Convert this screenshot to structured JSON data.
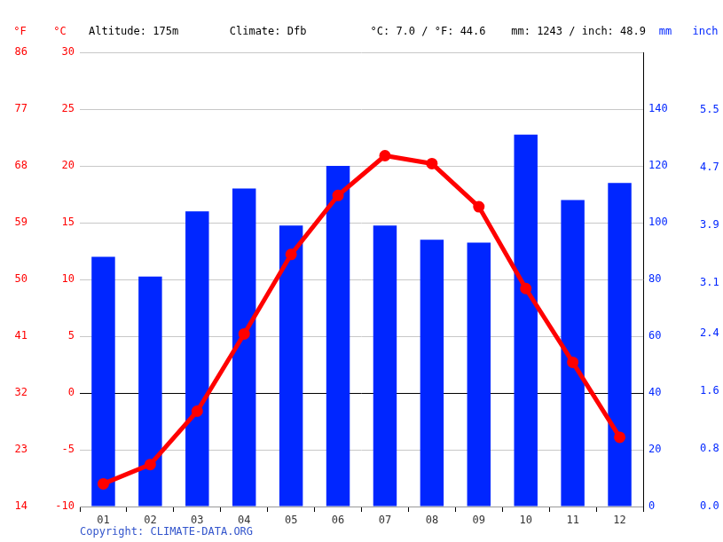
{
  "chart_data": {
    "type": "bar",
    "annotations": [
      "Altitude: 175m",
      "Climate: Dfb",
      "°C: 7.0 / °F: 44.6",
      "mm: 1243 / inch: 48.9"
    ],
    "caption": "Copyright: CLIMATE-DATA.ORG",
    "categories": [
      "01",
      "02",
      "03",
      "04",
      "05",
      "06",
      "07",
      "08",
      "09",
      "10",
      "11",
      "12"
    ],
    "series": [
      {
        "type": "bar",
        "color": "#0026ff",
        "axis": "y2",
        "values": [
          88,
          81,
          104,
          112,
          99,
          120,
          99,
          94,
          93,
          131,
          108,
          114
        ]
      },
      {
        "type": "line",
        "color": "#ff0000",
        "marker": "circle",
        "values": [
          -8.0,
          -6.3,
          -1.6,
          5.2,
          12.2,
          17.4,
          20.9,
          20.2,
          16.4,
          9.2,
          2.7,
          -3.9
        ]
      }
    ],
    "ylabel": "°C",
    "ylim": [
      -10,
      30
    ],
    "yticks": [
      -10,
      -5,
      0,
      5,
      10,
      15,
      20,
      25,
      30
    ],
    "y2label": "mm",
    "y2lim": [
      0,
      160
    ],
    "y2ticks": [
      0,
      20,
      40,
      60,
      80,
      100,
      120,
      140
    ],
    "y3label": "°F",
    "y3lim": [
      14,
      86
    ],
    "y3ticks": [
      14,
      23,
      32,
      41,
      50,
      59,
      68,
      77,
      86
    ],
    "y4label": "inch",
    "y4lim": [
      0,
      6.3
    ],
    "y4ticks": [
      {
        "value": 0,
        "label": "0.0"
      },
      0.8,
      1.6,
      2.4,
      3.1,
      3.9,
      4.7,
      5.5
    ],
    "grid": true
  }
}
